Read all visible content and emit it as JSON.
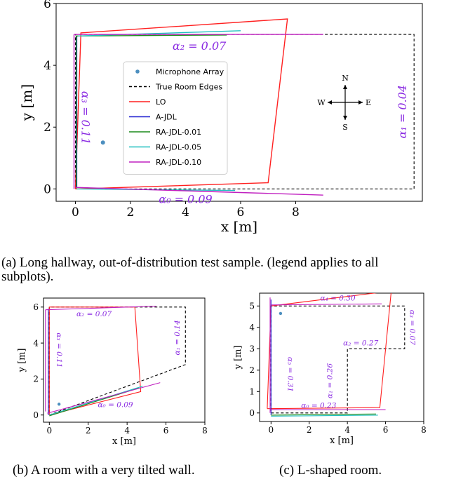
{
  "legend": {
    "entries": [
      {
        "name": "Microphone Array",
        "color": "#4c8fbf",
        "style": "dot"
      },
      {
        "name": "True Room Edges",
        "color": "#000000",
        "style": "dashed"
      },
      {
        "name": "LO",
        "color": "#ff2020",
        "style": "solid"
      },
      {
        "name": "A-JDL",
        "color": "#1f1fd0",
        "style": "solid"
      },
      {
        "name": "RA-JDL-0.01",
        "color": "#1a8a1a",
        "style": "solid"
      },
      {
        "name": "RA-JDL-0.05",
        "color": "#20c0c0",
        "style": "solid"
      },
      {
        "name": "RA-JDL-0.10",
        "color": "#c020c0",
        "style": "solid"
      }
    ]
  },
  "compass": {
    "n": "N",
    "s": "S",
    "e": "E",
    "w": "W"
  },
  "chart_data": [
    {
      "type": "line",
      "panel": "a",
      "xlabel": "x [m]",
      "ylabel": "y [m]",
      "xlim": [
        -0.7,
        12.6
      ],
      "ylim": [
        -0.4,
        6
      ],
      "xticks": [
        0,
        2,
        4,
        6,
        8
      ],
      "yticks": [
        0,
        2,
        4,
        6
      ],
      "caption": "(a) Long hallway, out-of-distribution test sample.  (legend applies to all subplots).",
      "mic": [
        1.0,
        1.5
      ],
      "series": [
        {
          "name": "True Room Edges",
          "points": [
            [
              0,
              0
            ],
            [
              12.3,
              0
            ],
            [
              12.3,
              5
            ],
            [
              0,
              5
            ],
            [
              0,
              0
            ]
          ]
        },
        {
          "name": "LO",
          "points": [
            [
              0,
              0
            ],
            [
              7.0,
              0.2
            ],
            [
              7.7,
              5.5
            ],
            [
              0.2,
              5.05
            ],
            [
              0,
              0
            ]
          ]
        },
        {
          "name": "A-JDL",
          "points": [
            [
              0.05,
              0.05
            ],
            [
              0.05,
              4.95
            ]
          ]
        },
        {
          "name": "RA-JDL-0.01",
          "points": [
            [
              0.03,
              0.02
            ],
            [
              0.03,
              4.95
            ],
            [
              5.5,
              4.98
            ]
          ]
        },
        {
          "name": "RA-JDL-0.05",
          "points": [
            [
              0.05,
              0
            ],
            [
              5.8,
              -0.05
            ]
          ]
        },
        {
          "name": "RA-JDL-0.05",
          "points": [
            [
              0.1,
              4.95
            ],
            [
              6.0,
              5.12
            ]
          ]
        },
        {
          "name": "RA-JDL-0.10",
          "points": [
            [
              -0.05,
              5.0
            ],
            [
              9.0,
              5.0
            ]
          ]
        },
        {
          "name": "RA-JDL-0.10",
          "points": [
            [
              0.0,
              0.05
            ],
            [
              9.0,
              -0.2
            ]
          ]
        },
        {
          "name": "RA-JDL-0.10",
          "points": [
            [
              -0.05,
              0.0
            ],
            [
              -0.05,
              5.0
            ]
          ]
        }
      ],
      "annotations": [
        {
          "text": "α₂ = 0.07",
          "x": 4.5,
          "y": 4.6,
          "rotate": 0
        },
        {
          "text": "α₃ = 0.11",
          "x": 0.35,
          "y": 2.3,
          "rotate": 90
        },
        {
          "text": "α₁ = 0.04",
          "x": 11.9,
          "y": 2.5,
          "rotate": -90
        },
        {
          "text": "α₀ = 0.09",
          "x": 4.0,
          "y": -0.35,
          "rotate": 0
        }
      ]
    },
    {
      "type": "line",
      "panel": "b",
      "xlabel": "x [m]",
      "ylabel": "y [m]",
      "xlim": [
        -0.3,
        8
      ],
      "ylim": [
        -0.4,
        6.5
      ],
      "xticks": [
        0,
        2,
        4,
        6,
        8
      ],
      "yticks": [
        0,
        2,
        4,
        6
      ],
      "caption": "(b) A room with a very tilted wall.",
      "mic": [
        0.5,
        0.6
      ],
      "series": [
        {
          "name": "True Room Edges",
          "points": [
            [
              0,
              0
            ],
            [
              7.0,
              2.8
            ],
            [
              7.0,
              6.0
            ],
            [
              0,
              6.0
            ],
            [
              0,
              0
            ]
          ]
        },
        {
          "name": "LO",
          "points": [
            [
              0,
              0
            ],
            [
              4.7,
              1.3
            ],
            [
              4.4,
              6.0
            ],
            [
              0,
              6.0
            ],
            [
              0,
              0
            ]
          ]
        },
        {
          "name": "A-JDL",
          "points": [
            [
              -0.05,
              0
            ],
            [
              -0.05,
              5.9
            ]
          ]
        },
        {
          "name": "RA-JDL-0.01",
          "points": [
            [
              0,
              -0.05
            ],
            [
              4.6,
              1.5
            ]
          ]
        },
        {
          "name": "RA-JDL-0.05",
          "points": [
            [
              0,
              0
            ],
            [
              4.8,
              1.6
            ]
          ]
        },
        {
          "name": "RA-JDL-0.10",
          "points": [
            [
              -0.1,
              0.1
            ],
            [
              5.7,
              1.8
            ]
          ]
        },
        {
          "name": "RA-JDL-0.10",
          "points": [
            [
              -0.2,
              5.85
            ],
            [
              5.5,
              6.05
            ]
          ]
        },
        {
          "name": "RA-JDL-0.10",
          "points": [
            [
              -0.2,
              0.2
            ],
            [
              -0.2,
              5.85
            ]
          ]
        }
      ],
      "annotations": [
        {
          "text": "α₂ = 0.07",
          "x": 2.3,
          "y": 5.6,
          "rotate": 0
        },
        {
          "text": "α₃ = 0.11",
          "x": 0.5,
          "y": 3.6,
          "rotate": 90
        },
        {
          "text": "α₁ = 0.14",
          "x": 6.6,
          "y": 4.3,
          "rotate": -90
        },
        {
          "text": "α₀ = 0.09",
          "x": 3.4,
          "y": 0.55,
          "rotate": 0
        }
      ]
    },
    {
      "type": "line",
      "panel": "c",
      "xlabel": "x [m]",
      "ylabel": "y [m]",
      "xlim": [
        -0.6,
        8
      ],
      "ylim": [
        -0.4,
        5.6
      ],
      "xticks": [
        0,
        2,
        4,
        6,
        8
      ],
      "yticks": [
        0,
        1,
        2,
        3,
        4,
        5
      ],
      "caption": "(c) L-shaped room.",
      "mic": [
        0.5,
        4.65
      ],
      "series": [
        {
          "name": "True Room Edges",
          "points": [
            [
              0,
              0
            ],
            [
              4,
              0
            ],
            [
              4,
              3
            ],
            [
              7,
              3
            ],
            [
              7,
              5
            ],
            [
              0,
              5
            ],
            [
              0,
              0
            ]
          ]
        },
        {
          "name": "LO",
          "points": [
            [
              -0.2,
              0.2
            ],
            [
              5.7,
              0.25
            ],
            [
              6.3,
              5.7
            ],
            [
              0,
              5.0
            ],
            [
              -0.2,
              0.2
            ]
          ]
        },
        {
          "name": "A-JDL",
          "points": [
            [
              0,
              -0.1
            ],
            [
              0,
              5.3
            ]
          ]
        },
        {
          "name": "RA-JDL-0.01",
          "points": [
            [
              0,
              -0.1
            ],
            [
              5.5,
              -0.05
            ]
          ]
        },
        {
          "name": "RA-JDL-0.05",
          "points": [
            [
              0,
              -0.15
            ],
            [
              5.6,
              -0.1
            ]
          ]
        },
        {
          "name": "RA-JDL-0.10",
          "points": [
            [
              0,
              5.05
            ],
            [
              5.8,
              5.1
            ]
          ]
        },
        {
          "name": "RA-JDL-0.10",
          "points": [
            [
              -0.05,
              0.15
            ],
            [
              6.0,
              0.15
            ]
          ]
        },
        {
          "name": "RA-JDL-0.10",
          "points": [
            [
              -0.05,
              0.0
            ],
            [
              -0.05,
              5.4
            ]
          ]
        }
      ],
      "annotations": [
        {
          "text": "α₄ = 0.30",
          "x": 3.5,
          "y": 5.35,
          "rotate": 0
        },
        {
          "text": "α₅ = 0.31",
          "x": 1.0,
          "y": 1.8,
          "rotate": 90
        },
        {
          "text": "α₃ = 0.07",
          "x": 7.4,
          "y": 4.0,
          "rotate": 90
        },
        {
          "text": "α₂ = 0.27",
          "x": 4.7,
          "y": 3.25,
          "rotate": 0
        },
        {
          "text": "α₁ = 0.26",
          "x": 3.1,
          "y": 1.5,
          "rotate": -90
        },
        {
          "text": "α₀ = 0.23",
          "x": 2.5,
          "y": 0.33,
          "rotate": 0
        }
      ]
    }
  ]
}
